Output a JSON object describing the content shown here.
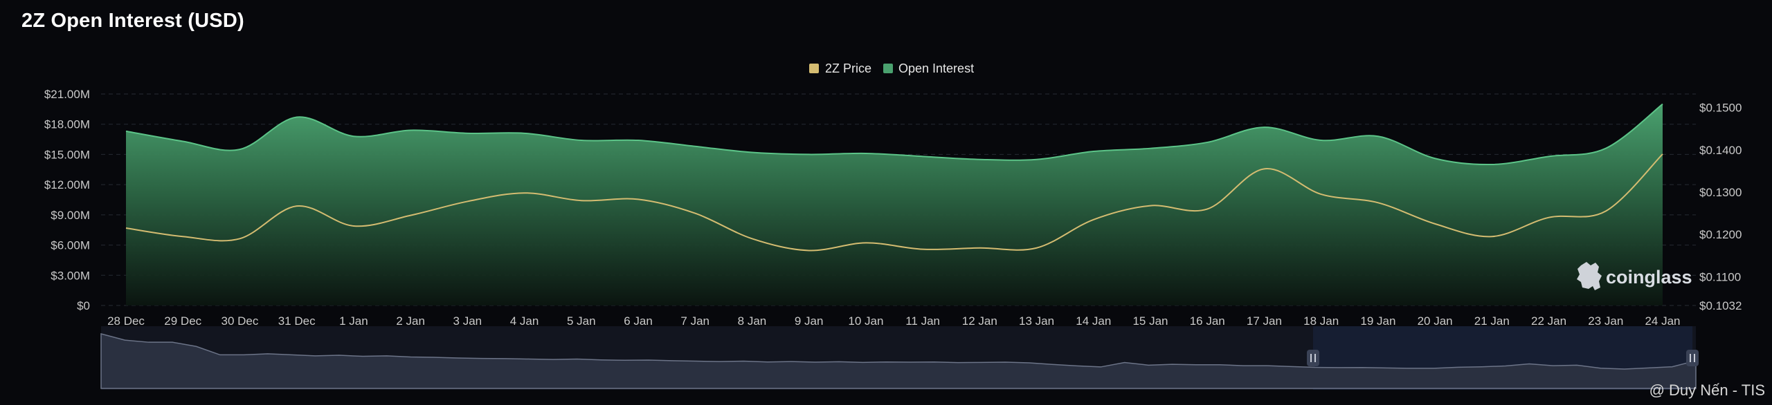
{
  "title": "2Z Open Interest (USD)",
  "brand": {
    "name": "coinglass",
    "icon": "coinglass-logo-icon"
  },
  "watermark": "@ Duy Nến - TIS",
  "colors": {
    "open_interest": "#4aa16f",
    "price": "#d4bc71",
    "background": "#07080c",
    "grid": "#272b33"
  },
  "chart_data": {
    "type": "area",
    "title": "2Z Open Interest (USD)",
    "legend": [
      "2Z Price",
      "Open Interest"
    ],
    "legend_position": "top-center",
    "grid": true,
    "categories": [
      "28 Dec",
      "29 Dec",
      "30 Dec",
      "31 Dec",
      "1 Jan",
      "2 Jan",
      "3 Jan",
      "4 Jan",
      "5 Jan",
      "6 Jan",
      "7 Jan",
      "8 Jan",
      "9 Jan",
      "10 Jan",
      "11 Jan",
      "12 Jan",
      "13 Jan",
      "14 Jan",
      "15 Jan",
      "16 Jan",
      "17 Jan",
      "18 Jan",
      "19 Jan",
      "20 Jan",
      "21 Jan",
      "22 Jan",
      "23 Jan",
      "24 Jan"
    ],
    "y_left": {
      "ticks": [
        "$0",
        "$3.00M",
        "$6.00M",
        "$9.00M",
        "$12.00M",
        "$15.00M",
        "$18.00M",
        "$21.00M"
      ],
      "tick_values": [
        0,
        3,
        6,
        9,
        12,
        15,
        18,
        21
      ],
      "range": [
        0,
        21
      ],
      "unit": "M USD"
    },
    "y_right": {
      "ticks": [
        "$0.1032",
        "$0.1100",
        "$0.1200",
        "$0.1300",
        "$0.1400",
        "$0.1500"
      ],
      "tick_values": [
        0.1032,
        0.11,
        0.12,
        0.13,
        0.14,
        0.15
      ],
      "range": [
        0.1032,
        0.1532
      ]
    },
    "series": [
      {
        "name": "Open Interest",
        "axis": "left",
        "values": [
          17.3,
          16.3,
          15.5,
          18.7,
          16.8,
          17.4,
          17.1,
          17.1,
          16.4,
          16.4,
          15.8,
          15.2,
          15.0,
          15.1,
          14.8,
          14.5,
          14.5,
          15.3,
          15.6,
          16.2,
          17.7,
          16.4,
          16.8,
          14.6,
          14.0,
          14.8,
          15.6,
          20.0
        ]
      },
      {
        "name": "2Z Price",
        "axis": "right",
        "values": [
          0.1215,
          0.1195,
          0.119,
          0.1267,
          0.122,
          0.1245,
          0.1278,
          0.1298,
          0.128,
          0.1283,
          0.125,
          0.119,
          0.1162,
          0.118,
          0.1165,
          0.1168,
          0.1168,
          0.1235,
          0.1268,
          0.126,
          0.1355,
          0.1295,
          0.1275,
          0.1225,
          0.1195,
          0.124,
          0.1255,
          0.139
        ]
      }
    ],
    "navigator": {
      "handle_icon": "drag-handle-icon"
    }
  }
}
